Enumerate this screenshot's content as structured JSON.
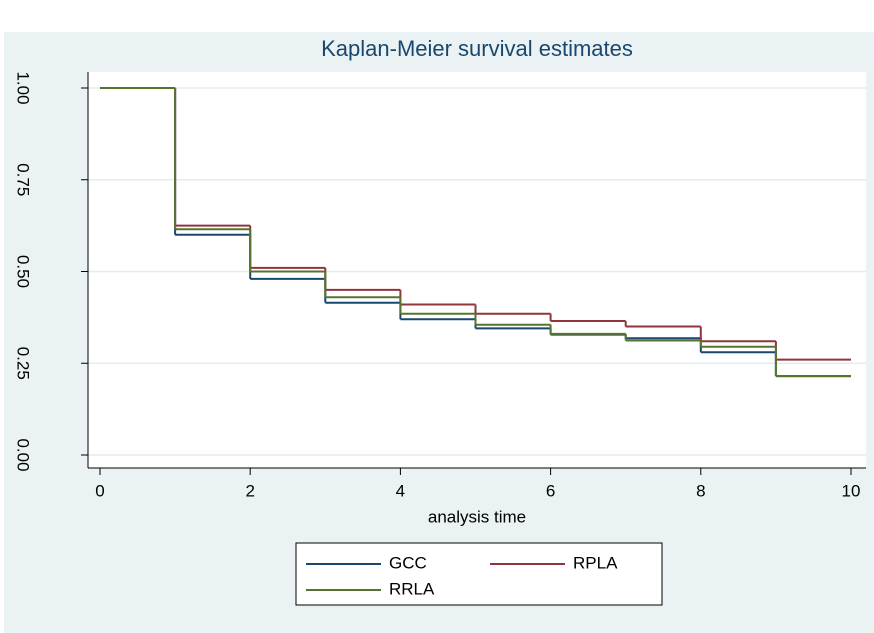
{
  "chart_data": {
    "type": "step",
    "title": "Kaplan-Meier survival estimates",
    "x_label": "analysis time",
    "x": [
      0,
      1,
      2,
      3,
      4,
      5,
      6,
      7,
      8,
      9
    ],
    "series": [
      {
        "name": "GCC",
        "color": "#1a476f",
        "values": [
          1.0,
          0.6,
          0.48,
          0.415,
          0.37,
          0.345,
          0.328,
          0.318,
          0.28,
          0.215
        ]
      },
      {
        "name": "RPLA",
        "color": "#90353b",
        "values": [
          1.0,
          0.625,
          0.51,
          0.45,
          0.41,
          0.385,
          0.365,
          0.35,
          0.31,
          0.26
        ]
      },
      {
        "name": "RRLA",
        "color": "#55752f",
        "values": [
          1.0,
          0.615,
          0.5,
          0.43,
          0.385,
          0.355,
          0.33,
          0.312,
          0.295,
          0.215
        ]
      }
    ],
    "xlim": [
      0,
      10
    ],
    "xticks": [
      0,
      2,
      4,
      6,
      8,
      10
    ],
    "ylim": [
      0,
      1
    ],
    "yticks": [
      {
        "value": 0,
        "label": "0.00"
      },
      {
        "value": 0.25,
        "label": "0.25"
      },
      {
        "value": 0.5,
        "label": "0.50"
      },
      {
        "value": 0.75,
        "label": "0.75"
      },
      {
        "value": 1,
        "label": "1.00"
      }
    ],
    "grid": true
  }
}
